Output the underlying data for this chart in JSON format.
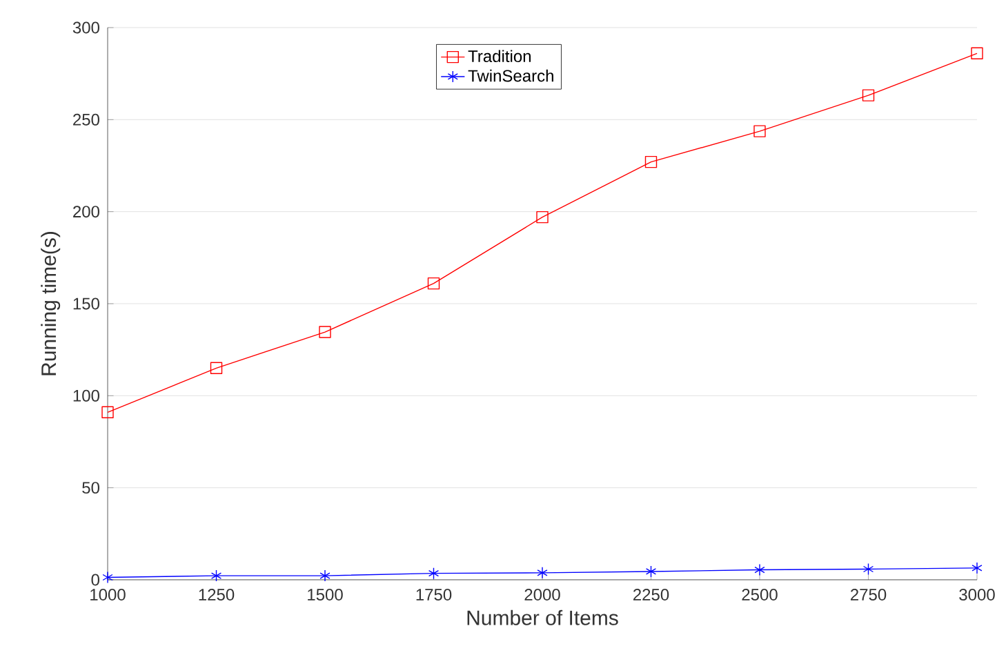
{
  "chart_data": {
    "type": "line",
    "xlabel": "Number of Items",
    "ylabel": "Running time(s)",
    "x": [
      1000,
      1250,
      1500,
      1750,
      2000,
      2250,
      2500,
      2750,
      3000
    ],
    "series": [
      {
        "name": "Tradition",
        "color": "#ff0000",
        "marker": "square",
        "values": [
          91,
          115,
          134.6,
          161,
          197,
          227,
          243.7,
          263.2,
          286
        ]
      },
      {
        "name": "TwinSearch",
        "color": "#0000ff",
        "marker": "cross",
        "values": [
          1.3,
          2.2,
          2.2,
          3.5,
          3.8,
          4.5,
          5.4,
          5.8,
          6.4
        ]
      }
    ],
    "xlim": [
      1000,
      3000
    ],
    "ylim": [
      0,
      300
    ],
    "xticks": [
      1000,
      1250,
      1500,
      1750,
      2000,
      2250,
      2500,
      2750,
      3000
    ],
    "yticks": [
      0,
      50,
      100,
      150,
      200,
      250,
      300
    ],
    "grid": "y",
    "legend": "top",
    "line_style": "solid"
  }
}
